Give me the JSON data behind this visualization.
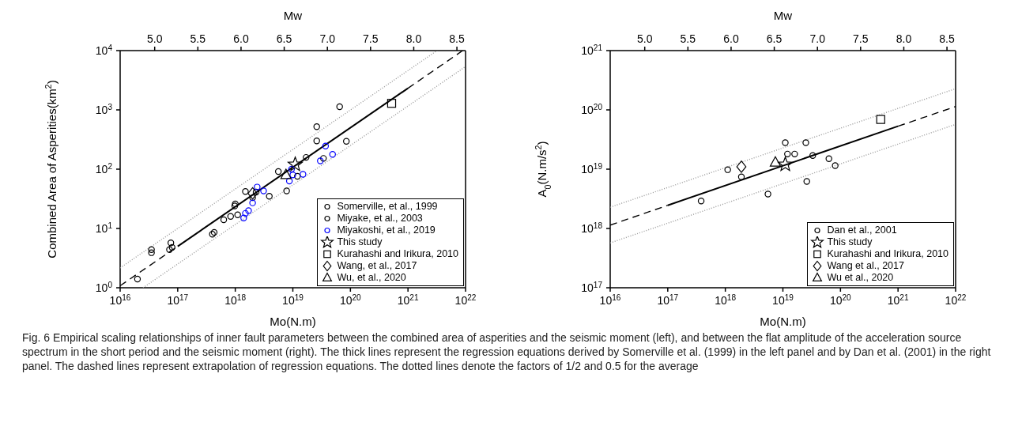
{
  "chart_data": [
    {
      "type": "scatter",
      "xlabel": "Mo(N.m)",
      "ylabel": "Combined Area of Asperities(km$^{2}$)",
      "x2label": "Mw",
      "log": "xy",
      "legend": "bottom right",
      "grid": false,
      "xlim": [
        1e+16,
        1e+22
      ],
      "xticks": [
        {
          "value": 1e+16,
          "label": "10$^{16}$"
        },
        {
          "value": 1e+17,
          "label": "10$^{17}$"
        },
        {
          "value": 1e+18,
          "label": "10$^{18}$"
        },
        {
          "value": 1e+19,
          "label": "10$^{19}$"
        },
        {
          "value": 1e+20,
          "label": "10$^{20}$"
        },
        {
          "value": 1e+21,
          "label": "10$^{21}$"
        },
        {
          "value": 1e+22,
          "label": "10$^{22}$"
        }
      ],
      "ylim": [
        1,
        10000
      ],
      "yticks": [
        {
          "value": 1,
          "label": "10$^{0}$"
        },
        {
          "value": 10,
          "label": "10$^{1}$"
        },
        {
          "value": 100,
          "label": "10$^{2}$"
        },
        {
          "value": 1000,
          "label": "10$^{3}$"
        },
        {
          "value": 10000,
          "label": "10$^{4}$"
        }
      ],
      "x2lim": [
        4.6,
        8.6
      ],
      "x2ticks": [
        {
          "value": 5,
          "label": "5.0"
        },
        5.5,
        {
          "value": 6,
          "label": "6.0"
        },
        6.5,
        {
          "value": 7,
          "label": "7.0"
        },
        7.5,
        {
          "value": 8,
          "label": "8.0"
        },
        8.5
      ],
      "series": [
        {
          "type": "line",
          "color": "#000000",
          "line_style": "dashed",
          "marker": "none",
          "x": [
            1e+16,
            1e+17
          ],
          "values": [
            1.08,
            5.0
          ]
        },
        {
          "type": "line",
          "color": "#000000",
          "line_style": "solid",
          "marker": "none",
          "x": [
            1e+17,
            1e+21
          ],
          "values": [
            5.0,
            2320
          ]
        },
        {
          "type": "line",
          "color": "#000000",
          "line_style": "dashed",
          "marker": "none",
          "x": [
            1e+21,
            8.9e+21
          ],
          "values": [
            2320,
            10000
          ]
        },
        {
          "type": "line",
          "color": "#999999",
          "line_style": "dotted",
          "marker": "none",
          "x": [
            1e+16,
            3.2e+21
          ],
          "values": [
            2.16,
            10000
          ]
        },
        {
          "type": "line",
          "color": "#999999",
          "line_style": "dotted",
          "marker": "none",
          "x": [
            2.5e+16,
            1e+22
          ],
          "values": [
            1,
            5385
          ]
        },
        {
          "type": "scatter",
          "name": "Somerville, et al., 1999",
          "color": "#000000",
          "marker": "circle",
          "x": [
            6.5e+19,
            2.6e+19,
            2.6e+19,
            8.5e+19,
            3.4e+19,
            1.7e+19,
            5.6e+18,
            1.2e+19,
            3.9e+18,
            7.8e+18,
            2.3e+18,
            2e+18,
            1.1e+18,
            4e+17
          ],
          "values": [
            1130,
            520,
            300,
            295,
            152,
            158,
            91,
            76,
            35,
            43,
            41,
            33,
            17,
            8
          ]
        },
        {
          "type": "scatter",
          "name": "Miyake, et al., 2003",
          "color": "#000000",
          "marker": "circle",
          "x": [
            2e+16,
            3.5e+16,
            3.5e+16,
            7.6e+16,
            8e+16,
            7.2e+16,
            4.3e+17,
            6.3e+17,
            8.3e+17,
            9.8e+17,
            1e+18,
            1.5e+18
          ],
          "values": [
            1.4,
            4.4,
            3.9,
            5.7,
            4.8,
            4.4,
            8.6,
            14,
            16,
            24,
            26,
            42
          ]
        },
        {
          "type": "scatter",
          "name": "Miyakoshi, et al., 2019",
          "color": "#0000ff",
          "marker": "circle",
          "x": [
            1.4e+18,
            1.5e+18,
            1.7e+18,
            2e+18,
            2.4e+18,
            3.1e+18,
            8.7e+18,
            9.5e+18,
            1e+19,
            1.5e+19,
            3e+19,
            3.7e+19,
            4.9e+19
          ],
          "values": [
            15,
            18,
            20,
            27,
            50,
            43,
            63,
            100,
            80,
            82,
            138,
            245,
            178
          ]
        },
        {
          "type": "scatter",
          "name": "This study",
          "color": "#000000",
          "marker": "star",
          "x": [
            1.1e+19
          ],
          "values": [
            120
          ]
        },
        {
          "type": "scatter",
          "name": "Kurahashi and Irikura, 2010",
          "color": "#000000",
          "marker": "square",
          "x": [
            5.2e+20
          ],
          "values": [
            1290
          ]
        },
        {
          "type": "scatter",
          "name": "Wang, et al., 2017",
          "color": "#000000",
          "marker": "diamond",
          "x": [
            2e+18
          ],
          "values": [
            39
          ]
        },
        {
          "type": "scatter",
          "name": "Wu, et al., 2020",
          "color": "#000000",
          "marker": "triangle",
          "x": [
            7.6e+18
          ],
          "values": [
            80
          ]
        }
      ]
    },
    {
      "type": "scatter",
      "xlabel": "Mo(N.m)",
      "ylabel": "A$_{0}$(N.m/s$^{2}$)",
      "x2label": "Mw",
      "log": "xy",
      "legend": "bottom right",
      "grid": false,
      "xlim": [
        1e+16,
        1e+22
      ],
      "xticks": [
        {
          "value": 1e+16,
          "label": "10$^{16}$"
        },
        {
          "value": 1e+17,
          "label": "10$^{17}$"
        },
        {
          "value": 1e+18,
          "label": "10$^{18}$"
        },
        {
          "value": 1e+19,
          "label": "10$^{19}$"
        },
        {
          "value": 1e+20,
          "label": "10$^{20}$"
        },
        {
          "value": 1e+21,
          "label": "10$^{21}$"
        },
        {
          "value": 1e+22,
          "label": "10$^{22}$"
        }
      ],
      "ylim": [
        1e+17,
        1e+21
      ],
      "yticks": [
        {
          "value": 1e+17,
          "label": "10$^{17}$"
        },
        {
          "value": 1e+18,
          "label": "10$^{18}$"
        },
        {
          "value": 1e+19,
          "label": "10$^{19}$"
        },
        {
          "value": 1e+20,
          "label": "10$^{20}$"
        },
        {
          "value": 1e+21,
          "label": "10$^{21}$"
        }
      ],
      "x2lim": [
        4.6,
        8.6
      ],
      "x2ticks": [
        {
          "value": 5,
          "label": "5.0"
        },
        5.5,
        {
          "value": 6,
          "label": "6.0"
        },
        6.5,
        {
          "value": 7,
          "label": "7.0"
        },
        7.5,
        {
          "value": 8,
          "label": "8.0"
        },
        8.5
      ],
      "annotations": [
        "Fig. 6  Empirical scaling relationships of inner fault parameters between the combined area of asperities and the seismic moment (left), and between the flat amplitude of the acceleration source spectrum in the short period and the seismic moment (right). The thick lines represent the regression equations derived by Somerville et al. (1999) in the left panel and by Dan et al. (2001) in the right panel. The dashed lines represent extrapolation of regression equations. The dotted lines denote the factors of 1/2 and 0.5 for the average"
      ],
      "series": [
        {
          "type": "line",
          "color": "#000000",
          "line_style": "dashed",
          "marker": "none",
          "x": [
            1e+16,
            1e+17
          ],
          "values": [
            1.14e+18,
            2.46e+18
          ]
        },
        {
          "type": "line",
          "color": "#000000",
          "line_style": "solid",
          "marker": "none",
          "x": [
            1e+17,
            1e+21
          ],
          "values": [
            2.46e+18,
            5.3e+19
          ]
        },
        {
          "type": "line",
          "color": "#000000",
          "line_style": "dashed",
          "marker": "none",
          "x": [
            1e+21,
            1e+22
          ],
          "values": [
            5.3e+19,
            1.14e+20
          ]
        },
        {
          "type": "line",
          "color": "#999999",
          "line_style": "dotted",
          "marker": "none",
          "x": [
            1e+16,
            1e+22
          ],
          "values": [
            2.28e+18,
            2.28e+20
          ]
        },
        {
          "type": "line",
          "color": "#999999",
          "line_style": "dotted",
          "marker": "none",
          "x": [
            1e+16,
            1e+22
          ],
          "values": [
            5.7e+17,
            5.7e+19
          ]
        },
        {
          "type": "scatter",
          "name": "Dan et al., 2001",
          "color": "#000000",
          "marker": "circle",
          "x": [
            3.8e+17,
            1.1e+18,
            1.9e+18,
            5.5e+18,
            1.1e+19,
            1.2e+19,
            1.6e+19,
            2.5e+19,
            3.3e+19,
            2.6e+19,
            6.3e+19,
            8.1e+19
          ],
          "values": [
            2.9e+18,
            9.8e+18,
            7.4e+18,
            3.8e+18,
            2.8e+19,
            1.8e+19,
            1.8e+19,
            2.8e+19,
            1.7e+19,
            6.2e+18,
            1.5e+19,
            1.15e+19
          ]
        },
        {
          "type": "scatter",
          "name": "This study",
          "color": "#000000",
          "marker": "star",
          "x": [
            1.1e+19
          ],
          "values": [
            1.2e+19
          ]
        },
        {
          "type": "scatter",
          "name": "Kurahashi and Irikura, 2010",
          "color": "#000000",
          "marker": "square",
          "x": [
            5e+20
          ],
          "values": [
            6.9e+19
          ]
        },
        {
          "type": "scatter",
          "name": "Wang et al., 2017",
          "color": "#000000",
          "marker": "diamond",
          "x": [
            1.9e+18
          ],
          "values": [
            1.1e+19
          ]
        },
        {
          "type": "scatter",
          "name": "Wu et al., 2020",
          "color": "#000000",
          "marker": "triangle",
          "x": [
            7.4e+18
          ],
          "values": [
            1.3e+19
          ]
        }
      ]
    }
  ]
}
